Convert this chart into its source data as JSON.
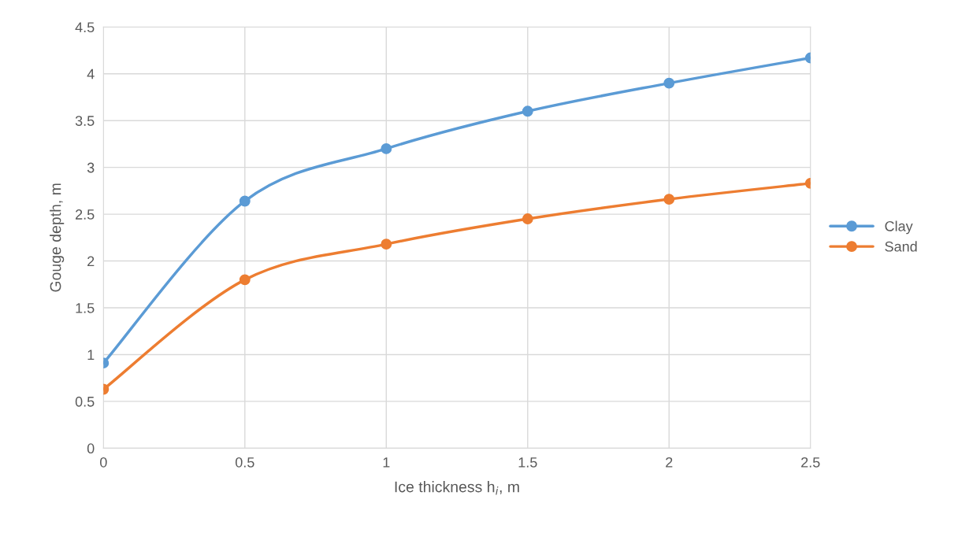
{
  "chart_data": {
    "type": "line",
    "xlabel": "Ice thickness h$_{i}$, m",
    "ylabel": "Gouge depth, m",
    "x": [
      0,
      0.5,
      1,
      1.5,
      2,
      2.5
    ],
    "series": [
      {
        "name": "Clay",
        "color": "#5b9bd5",
        "values": [
          0.91,
          2.64,
          3.2,
          3.6,
          3.9,
          4.17
        ]
      },
      {
        "name": "Sand",
        "color": "#ed7d31",
        "values": [
          0.63,
          1.8,
          2.18,
          2.45,
          2.66,
          2.83
        ]
      }
    ],
    "xlim": [
      0,
      2.5
    ],
    "xticks": [
      0,
      0.5,
      1,
      1.5,
      2,
      2.5
    ],
    "ylim": [
      0,
      4.5
    ],
    "yticks": [
      0,
      0.5,
      1,
      1.5,
      2,
      2.5,
      3,
      3.5,
      4,
      4.5
    ],
    "grid": true,
    "legend": "right",
    "marker": "circle",
    "line_style": "solid"
  }
}
